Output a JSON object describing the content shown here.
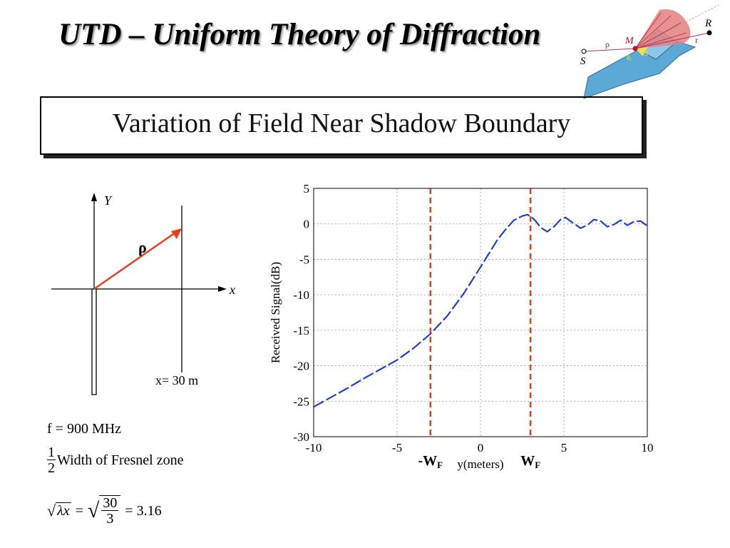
{
  "slide": {
    "title": "UTD – Uniform Theory of Diffraction",
    "subtitle": "Variation of Field Near Shadow Boundary"
  },
  "logo": {
    "labels": {
      "source": "S",
      "receiver": "R",
      "point": "M",
      "rho": "ρ",
      "r": "r",
      "theta_i": "θᵢ",
      "theta_d": "θd"
    },
    "colors": {
      "wedge": "#5aa9d6",
      "cone": "#e06060",
      "rays": "#b0306a"
    }
  },
  "geometry_diagram": {
    "y_label": "Y",
    "x_label": "x",
    "rho_label": "ρ",
    "distance_label": "x= 30 m",
    "vector_color": "#e8401c"
  },
  "formulas": {
    "frequency": "f = 900 MHz",
    "fresnel_half_num": "1",
    "fresnel_half_den": "2",
    "fresnel_text": "Width of Fresnel zone",
    "sqrt_lhs": "λx",
    "sqrt_num": "30",
    "sqrt_den": "3",
    "sqrt_result": "= 3.16"
  },
  "chart_data": {
    "type": "line",
    "xlabel": "y(meters)",
    "ylabel": "Received Signal(dB)",
    "xlim": [
      -10,
      10
    ],
    "ylim": [
      -30,
      5
    ],
    "xticks": [
      -10,
      -5,
      0,
      5,
      10
    ],
    "yticks": [
      5,
      0,
      -5,
      -10,
      -15,
      -20,
      -25,
      -30
    ],
    "grid": true,
    "series": [
      {
        "color": "#1f3fd6",
        "x": [
          -10,
          -9,
          -8,
          -7,
          -6,
          -5,
          -4,
          -3,
          -2,
          -1,
          0,
          0.5,
          1,
          1.5,
          2,
          2.5,
          2.8,
          3,
          3.3,
          3.6,
          4,
          4.4,
          4.8,
          5.1,
          5.5,
          6,
          6.4,
          6.8,
          7.2,
          7.6,
          8,
          8.4,
          8.8,
          9.2,
          9.6,
          10
        ],
        "y": [
          -25.8,
          -24.5,
          -23.2,
          -21.8,
          -20.5,
          -19.2,
          -17.5,
          -15.5,
          -13,
          -9.8,
          -6.1,
          -4.2,
          -2.3,
          -0.8,
          0.5,
          1.1,
          1.3,
          1.1,
          0.4,
          -0.5,
          -1.1,
          -0.4,
          0.6,
          0.9,
          0.2,
          -0.6,
          -0.2,
          0.6,
          0.4,
          -0.4,
          -0.1,
          0.5,
          -0.2,
          0.3,
          0.4,
          -0.3
        ]
      }
    ],
    "annotations": [
      {
        "x": -3,
        "label": "-W",
        "subscript": "F",
        "color": "#e8401c"
      },
      {
        "x": 3,
        "label": "W",
        "subscript": "F",
        "color": "#e8401c"
      }
    ]
  }
}
